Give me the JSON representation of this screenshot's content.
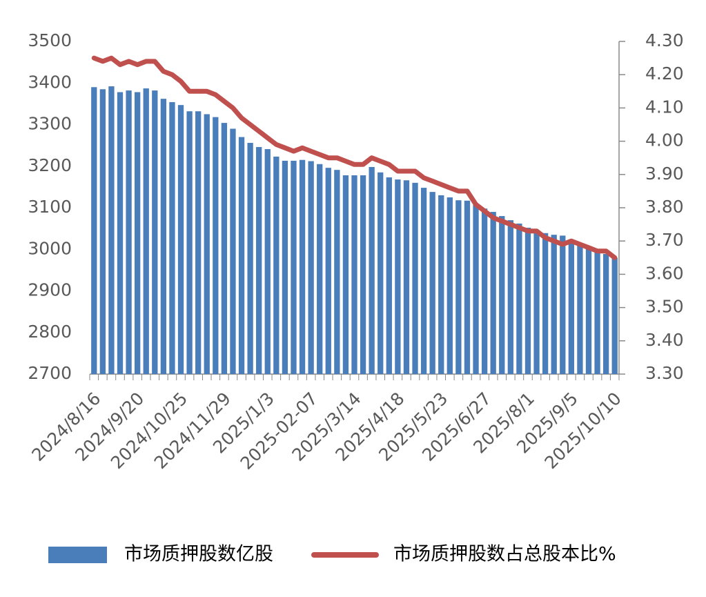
{
  "chart_data": {
    "type": "bar",
    "categories": [
      "2024/8/16",
      null,
      null,
      null,
      null,
      "2024/9/20",
      null,
      null,
      null,
      null,
      "2024/10/25",
      null,
      null,
      null,
      null,
      "2024/11/29",
      null,
      null,
      null,
      null,
      "2025/1/3",
      null,
      null,
      null,
      null,
      "2025-02-07",
      null,
      null,
      null,
      null,
      "2025/3/14",
      null,
      null,
      null,
      null,
      "2025/4/18",
      null,
      null,
      null,
      null,
      "2025/5/23",
      null,
      null,
      null,
      null,
      "2025/6/27",
      null,
      null,
      null,
      null,
      "2025/8/1",
      null,
      null,
      null,
      null,
      "2025/9/5",
      null,
      null,
      null,
      null,
      "2025/10/10"
    ],
    "series": [
      {
        "name": "市场质押股数亿股",
        "type": "bar",
        "color": "#4a7ebb",
        "values": [
          3390,
          3385,
          3392,
          3378,
          3382,
          3378,
          3387,
          3382,
          3362,
          3354,
          3347,
          3332,
          3332,
          3325,
          3318,
          3304,
          3290,
          3270,
          3256,
          3246,
          3241,
          3223,
          3213,
          3213,
          3215,
          3212,
          3205,
          3196,
          3191,
          3178,
          3178,
          3178,
          3198,
          3185,
          3173,
          3168,
          3166,
          3160,
          3148,
          3138,
          3130,
          3125,
          3118,
          3117,
          3107,
          3098,
          3090,
          3080,
          3070,
          3062,
          3052,
          3044,
          3039,
          3035,
          3033,
          3018,
          3010,
          3002,
          2995,
          2989,
          2980
        ]
      },
      {
        "name": "市场质押股数占总股本比%",
        "type": "line",
        "axis": "y2",
        "color": "#c0504d",
        "values": [
          4.25,
          4.24,
          4.25,
          4.23,
          4.24,
          4.23,
          4.24,
          4.24,
          4.21,
          4.2,
          4.18,
          4.15,
          4.15,
          4.15,
          4.14,
          4.12,
          4.1,
          4.07,
          4.05,
          4.03,
          4.01,
          3.99,
          3.98,
          3.97,
          3.98,
          3.97,
          3.96,
          3.95,
          3.95,
          3.94,
          3.93,
          3.93,
          3.95,
          3.94,
          3.93,
          3.91,
          3.91,
          3.91,
          3.89,
          3.88,
          3.87,
          3.86,
          3.85,
          3.85,
          3.81,
          3.79,
          3.77,
          3.76,
          3.75,
          3.74,
          3.73,
          3.73,
          3.71,
          3.7,
          3.69,
          3.7,
          3.69,
          3.68,
          3.67,
          3.67,
          3.65
        ]
      }
    ],
    "ylim": [
      2700,
      3500
    ],
    "yticks": [
      2700,
      2800,
      2900,
      3000,
      3100,
      3200,
      3300,
      3400,
      3500
    ],
    "y2lim": [
      3.3,
      4.3
    ],
    "y2ticks": [
      {
        "value": 3.3,
        "label": "3.30"
      },
      {
        "value": 3.4,
        "label": "3.40"
      },
      {
        "value": 3.5,
        "label": "3.50"
      },
      {
        "value": 3.6,
        "label": "3.60"
      },
      {
        "value": 3.7,
        "label": "3.70"
      },
      {
        "value": 3.8,
        "label": "3.80"
      },
      {
        "value": 3.9,
        "label": "3.90"
      },
      {
        "value": 4.0,
        "label": "4.00"
      },
      {
        "value": 4.1,
        "label": "4.10"
      },
      {
        "value": 4.2,
        "label": "4.20"
      },
      {
        "value": 4.3,
        "label": "4.30"
      }
    ],
    "legend": "bottom"
  }
}
